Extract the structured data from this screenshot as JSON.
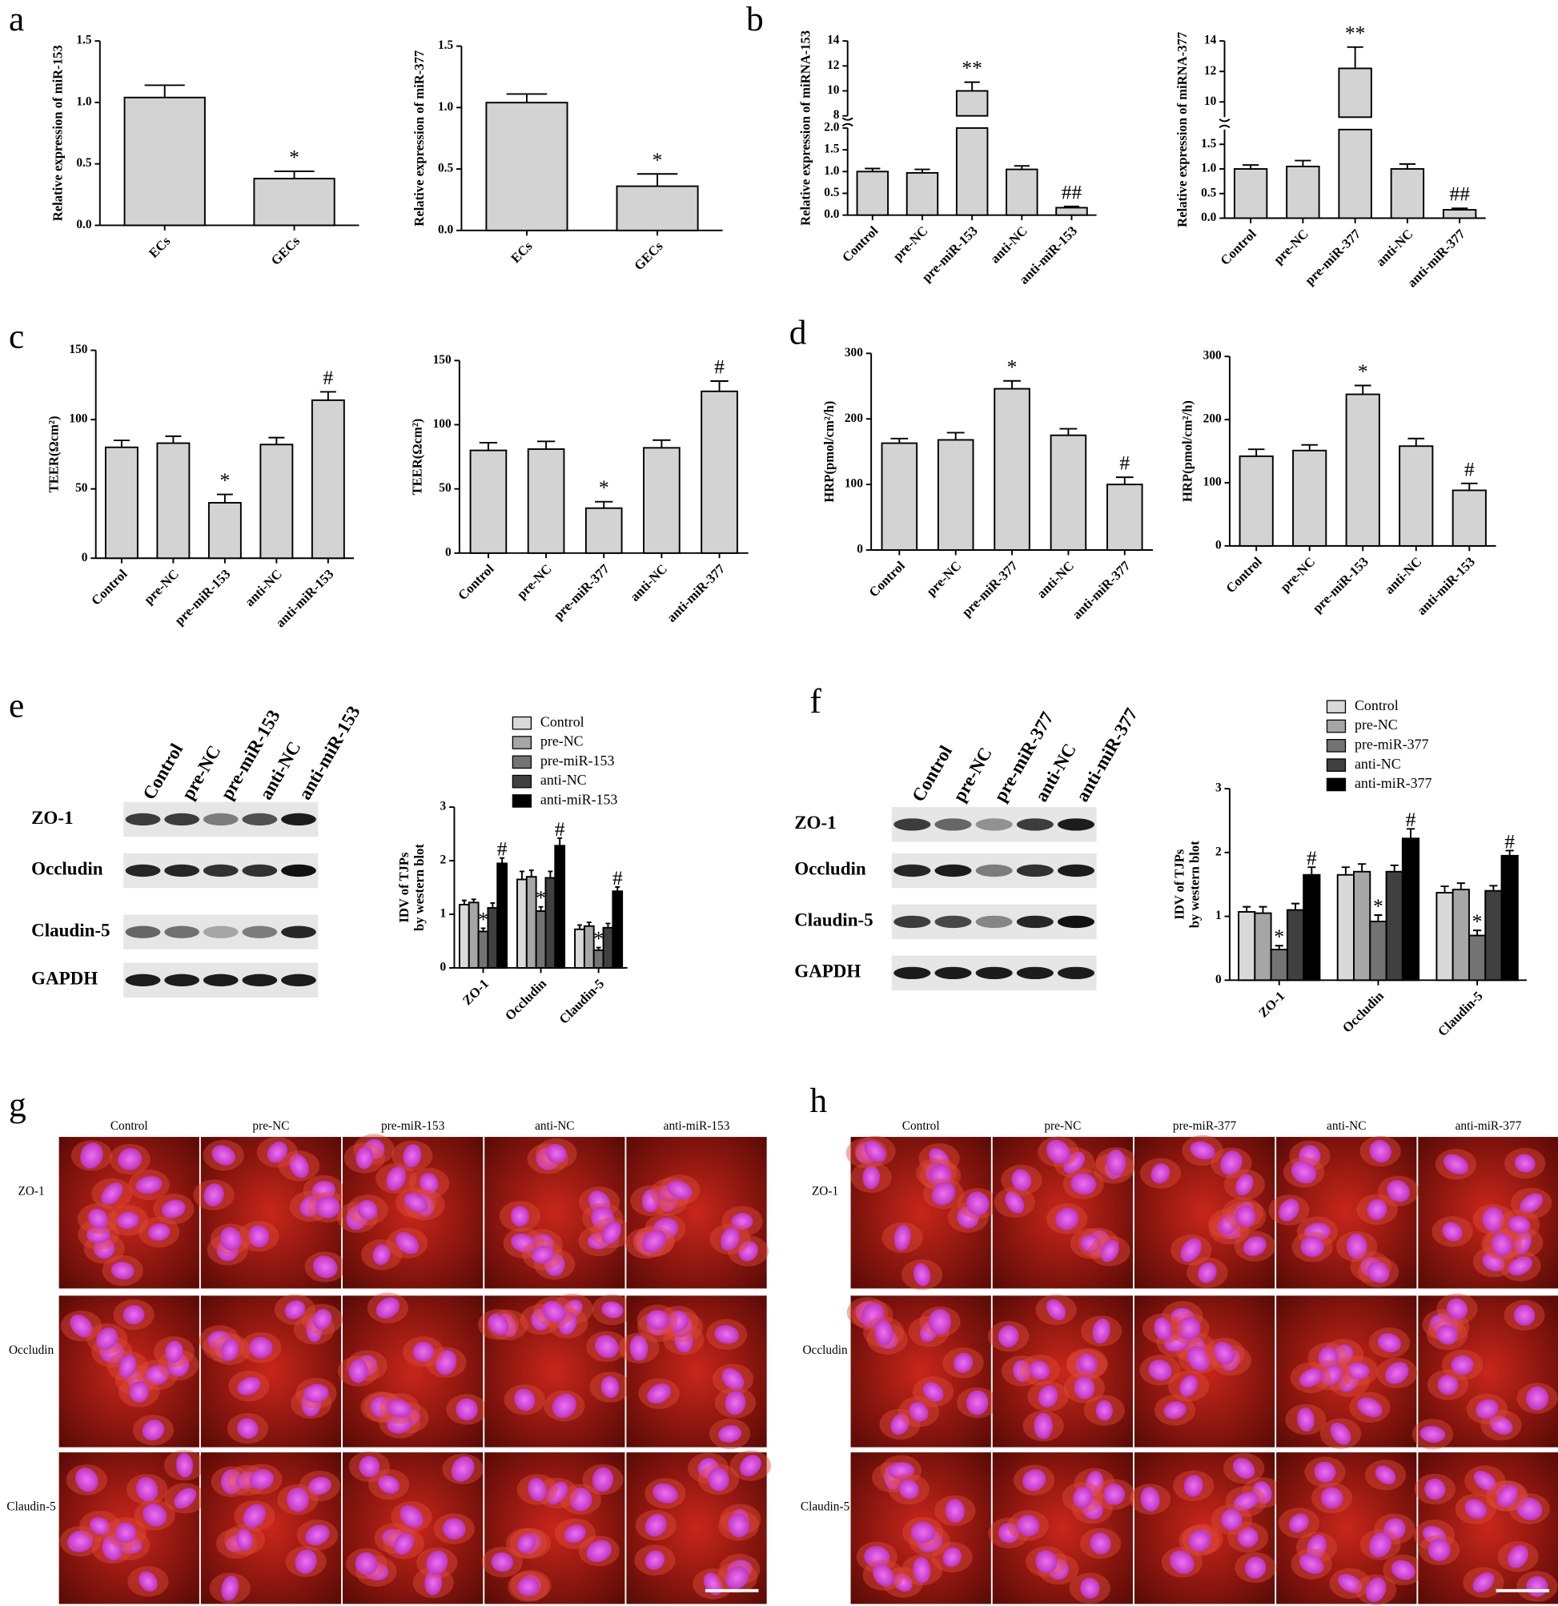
{
  "panel_letters": [
    "a",
    "b",
    "c",
    "d",
    "e",
    "f",
    "g",
    "h"
  ],
  "chart_data": [
    {
      "type": "bar",
      "ylabel": "Relative expression of miR-153",
      "categories": [
        "ECs",
        "GECs"
      ],
      "values": [
        1.04,
        0.38
      ],
      "errors": [
        0.1,
        0.06
      ],
      "annotations": [
        null,
        "*"
      ],
      "color": "#d3d3d3",
      "ylim": [
        0,
        1.5
      ],
      "yticks": [
        {
          "value": 0,
          "label": "0.0"
        },
        {
          "value": 0.5,
          "label": "0.5"
        },
        {
          "value": 1,
          "label": "1.0"
        },
        {
          "value": 1.5,
          "label": "1.5"
        }
      ]
    },
    {
      "type": "bar",
      "ylabel": "Relative expression of miR-377",
      "categories": [
        "ECs",
        "GECs"
      ],
      "values": [
        1.04,
        0.36
      ],
      "errors": [
        0.07,
        0.1
      ],
      "annotations": [
        null,
        "*"
      ],
      "color": "#d3d3d3",
      "ylim": [
        0,
        1.5
      ],
      "yticks": [
        {
          "value": 0,
          "label": "0.0"
        },
        {
          "value": 0.5,
          "label": "0.5"
        },
        {
          "value": 1,
          "label": "1.0"
        },
        {
          "value": 1.5,
          "label": "1.5"
        }
      ]
    },
    {
      "type": "bar",
      "ylabel": "Relative expression of miRNA-153",
      "categories": [
        "Control",
        "pre-NC",
        "pre-miR-153",
        "anti-NC",
        "anti-miR-153"
      ],
      "values": [
        1.0,
        0.97,
        10.0,
        1.05,
        0.17
      ],
      "errors": [
        0.07,
        0.08,
        0.7,
        0.08,
        0.03
      ],
      "annotations": [
        null,
        null,
        "**",
        null,
        "##"
      ],
      "color": "#d3d3d3",
      "ylim": [
        0,
        14
      ],
      "axis_break": [
        2,
        8
      ],
      "yticks": [
        {
          "value": 0,
          "label": "0.0"
        },
        {
          "value": 0.5,
          "label": "0.5"
        },
        {
          "value": 1,
          "label": "1.0"
        },
        {
          "value": 1.5,
          "label": "1.5"
        },
        {
          "value": 2,
          "label": "2.0"
        },
        8,
        10,
        12,
        14
      ]
    },
    {
      "type": "bar",
      "ylabel": "Relative expression of miRNA-377",
      "categories": [
        "Control",
        "pre-NC",
        "pre-miR-377",
        "anti-NC",
        "anti-miR-377"
      ],
      "values": [
        1.0,
        1.05,
        12.2,
        1.0,
        0.17
      ],
      "errors": [
        0.08,
        0.12,
        1.4,
        0.1,
        0.03
      ],
      "annotations": [
        null,
        null,
        "**",
        null,
        "##"
      ],
      "color": "#d3d3d3",
      "ylim": [
        0,
        14
      ],
      "axis_break": [
        1.8,
        9
      ],
      "yticks": [
        {
          "value": 0,
          "label": "0.0"
        },
        {
          "value": 0.5,
          "label": "0.5"
        },
        {
          "value": 1,
          "label": "1.0"
        },
        {
          "value": 1.5,
          "label": "1.5"
        },
        10,
        12,
        14
      ]
    },
    {
      "type": "bar",
      "ylabel": "TEER(Ωcm²)",
      "categories": [
        "Control",
        "pre-NC",
        "pre-miR-153",
        "anti-NC",
        "anti-miR-153"
      ],
      "values": [
        80,
        83,
        40,
        82,
        114
      ],
      "errors": [
        5,
        5,
        6,
        5,
        6
      ],
      "annotations": [
        null,
        null,
        "*",
        null,
        "#"
      ],
      "color": "#d3d3d3",
      "ylim": [
        0,
        150
      ],
      "yticks": [
        0,
        50,
        100,
        150
      ]
    },
    {
      "type": "bar",
      "ylabel": "TEER(Ωcm²)",
      "categories": [
        "Control",
        "pre-NC",
        "pre-miR-377",
        "anti-NC",
        "anti-miR-377"
      ],
      "values": [
        80,
        81,
        35,
        82,
        126
      ],
      "errors": [
        6,
        6,
        5,
        6,
        8
      ],
      "annotations": [
        null,
        null,
        "*",
        null,
        "#"
      ],
      "color": "#d3d3d3",
      "ylim": [
        0,
        150
      ],
      "yticks": [
        0,
        50,
        100,
        150
      ]
    },
    {
      "type": "bar",
      "ylabel": "HRP(pmol/cm²/h)",
      "categories": [
        "Control",
        "pre-NC",
        "pre-miR-377",
        "anti-NC",
        "anti-miR-377"
      ],
      "values": [
        163,
        168,
        246,
        175,
        100
      ],
      "errors": [
        7,
        11,
        12,
        10,
        11
      ],
      "annotations": [
        null,
        null,
        "*",
        null,
        "#"
      ],
      "color": "#d3d3d3",
      "ylim": [
        0,
        300
      ],
      "yticks": [
        0,
        100,
        200,
        300
      ]
    },
    {
      "type": "bar",
      "ylabel": "HRP(pmol/cm²/h)",
      "categories": [
        "Control",
        "pre-NC",
        "pre-miR-153",
        "anti-NC",
        "anti-miR-153"
      ],
      "values": [
        142,
        151,
        240,
        158,
        88
      ],
      "errors": [
        11,
        9,
        14,
        12,
        11
      ],
      "annotations": [
        null,
        null,
        "*",
        null,
        "#"
      ],
      "color": "#d3d3d3",
      "ylim": [
        0,
        300
      ],
      "yticks": [
        0,
        100,
        200,
        300
      ]
    },
    {
      "type": "bar",
      "ylabel": [
        "IDV of TJPs",
        "by western blot"
      ],
      "categories": [
        "ZO-1",
        "Occludin",
        "Claudin-5"
      ],
      "ylim": [
        0,
        3
      ],
      "yticks": [
        0,
        1,
        2,
        3
      ],
      "legend": "top",
      "series": [
        {
          "name": "Control",
          "color": "#d9d9d9",
          "values": [
            1.18,
            1.65,
            0.72
          ],
          "errors": [
            0.08,
            0.15,
            0.08
          ],
          "annotations": [
            null,
            null,
            null
          ]
        },
        {
          "name": "pre-NC",
          "color": "#a6a6a6",
          "values": [
            1.22,
            1.7,
            0.78
          ],
          "errors": [
            0.06,
            0.12,
            0.07
          ],
          "annotations": [
            null,
            null,
            null
          ]
        },
        {
          "name": "pre-miR-153",
          "color": "#737373",
          "values": [
            0.68,
            1.06,
            0.33
          ],
          "errors": [
            0.06,
            0.08,
            0.05
          ],
          "annotations": [
            "*",
            "*",
            "*"
          ]
        },
        {
          "name": "anti-NC",
          "color": "#404040",
          "values": [
            1.12,
            1.68,
            0.75
          ],
          "errors": [
            0.09,
            0.12,
            0.08
          ],
          "annotations": [
            null,
            null,
            null
          ]
        },
        {
          "name": "anti-miR-153",
          "color": "#000000",
          "values": [
            1.95,
            2.28,
            1.43
          ],
          "errors": [
            0.1,
            0.14,
            0.08
          ],
          "annotations": [
            "#",
            "#",
            "#"
          ]
        }
      ]
    },
    {
      "type": "bar",
      "ylabel": [
        "IDV of TJPs",
        "by western blot"
      ],
      "categories": [
        "ZO-1",
        "Occludin",
        "Claudin-5"
      ],
      "ylim": [
        0,
        3
      ],
      "yticks": [
        0,
        1,
        2,
        3
      ],
      "legend": "top",
      "series": [
        {
          "name": "Control",
          "color": "#d9d9d9",
          "values": [
            1.07,
            1.65,
            1.37
          ],
          "errors": [
            0.08,
            0.12,
            0.1
          ],
          "annotations": [
            null,
            null,
            null
          ]
        },
        {
          "name": "pre-NC",
          "color": "#a6a6a6",
          "values": [
            1.05,
            1.7,
            1.42
          ],
          "errors": [
            0.1,
            0.12,
            0.1
          ],
          "annotations": [
            null,
            null,
            null
          ]
        },
        {
          "name": "pre-miR-377",
          "color": "#737373",
          "values": [
            0.48,
            0.92,
            0.7
          ],
          "errors": [
            0.06,
            0.1,
            0.08
          ],
          "annotations": [
            "*",
            "*",
            "*"
          ]
        },
        {
          "name": "anti-NC",
          "color": "#404040",
          "values": [
            1.1,
            1.7,
            1.4
          ],
          "errors": [
            0.1,
            0.1,
            0.08
          ],
          "annotations": [
            null,
            null,
            null
          ]
        },
        {
          "name": "anti-miR-377",
          "color": "#000000",
          "values": [
            1.65,
            2.22,
            1.95
          ],
          "errors": [
            0.12,
            0.15,
            0.08
          ],
          "annotations": [
            "#",
            "#",
            "#"
          ]
        }
      ]
    }
  ],
  "blots": [
    {
      "lanes": [
        "Control",
        "pre-NC",
        "pre-miR-153",
        "anti-NC",
        "anti-miR-153"
      ],
      "proteins": [
        "ZO-1",
        "Occludin",
        "Claudin-5",
        "GAPDH"
      ]
    },
    {
      "lanes": [
        "Control",
        "pre-NC",
        "pre-miR-377",
        "anti-NC",
        "anti-miR-377"
      ],
      "proteins": [
        "ZO-1",
        "Occludin",
        "Claudin-5",
        "GAPDH"
      ]
    }
  ],
  "micrographs": [
    {
      "columns": [
        "Control",
        "pre-NC",
        "pre-miR-153",
        "anti-NC",
        "anti-miR-153"
      ],
      "rows": [
        "ZO-1",
        "Occludin",
        "Claudin-5"
      ]
    },
    {
      "columns": [
        "Control",
        "pre-NC",
        "pre-miR-377",
        "anti-NC",
        "anti-miR-377"
      ],
      "rows": [
        "ZO-1",
        "Occludin",
        "Claudin-5"
      ]
    }
  ]
}
